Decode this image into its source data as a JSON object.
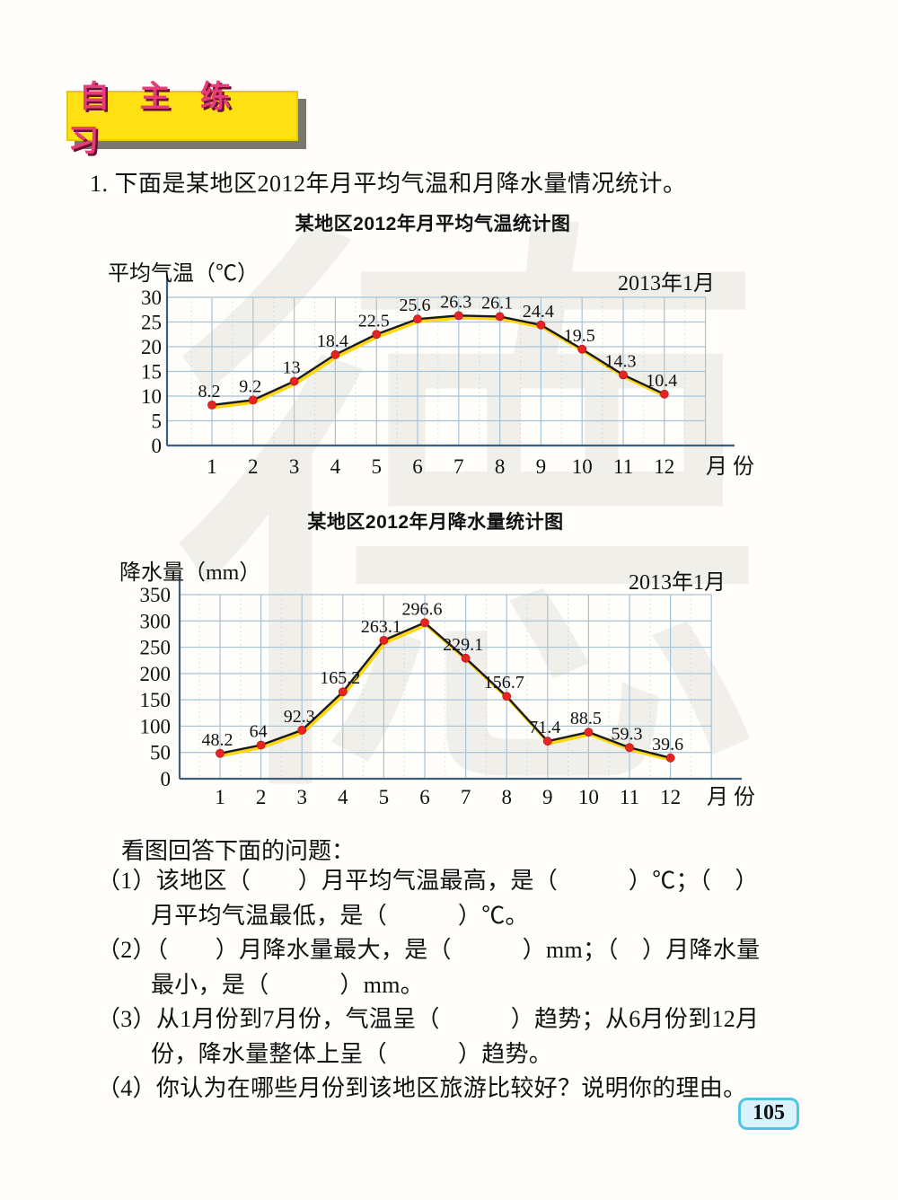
{
  "header": {
    "badge_label": "自 主 练 习"
  },
  "intro_text": "1. 下面是某地区2012年月平均气温和月降水量情况统计。",
  "watermark": "德",
  "chart_data": [
    {
      "type": "line",
      "title": "某地区2012年月平均气温统计图",
      "ylabel": "平均气温（℃）",
      "corner_label": "2013年1月",
      "xlabel": "月份",
      "x": [
        1,
        2,
        3,
        4,
        5,
        6,
        7,
        8,
        9,
        10,
        11,
        12
      ],
      "values": [
        8.2,
        9.2,
        13,
        18.4,
        22.5,
        25.6,
        26.3,
        26.1,
        24.4,
        19.5,
        14.3,
        10.4
      ],
      "value_labels": [
        "8.2",
        "9.2",
        "13",
        "18.4",
        "22.5",
        "25.6",
        "26.3",
        "26.1",
        "24.4",
        "19.5",
        "14.3",
        "10.4"
      ],
      "yticks": [
        0,
        5,
        10,
        15,
        20,
        25,
        30
      ],
      "ylim": [
        0,
        30
      ],
      "grid": true,
      "legend": "none"
    },
    {
      "type": "line",
      "title": "某地区2012年月降水量统计图",
      "ylabel": "降水量（mm）",
      "corner_label": "2013年1月",
      "xlabel": "月份",
      "x": [
        1,
        2,
        3,
        4,
        5,
        6,
        7,
        8,
        9,
        10,
        11,
        12
      ],
      "values": [
        48.2,
        64,
        92.3,
        165.2,
        263.1,
        296.6,
        229.1,
        156.7,
        71.4,
        88.5,
        59.3,
        39.6
      ],
      "value_labels": [
        "48.2",
        "64",
        "92.3",
        "165.2",
        "263.1",
        "296.6",
        "229.1",
        "156.7",
        "71.4",
        "88.5",
        "59.3",
        "39.6"
      ],
      "yticks": [
        0,
        50,
        100,
        150,
        200,
        250,
        300,
        350
      ],
      "ylim": [
        0,
        350
      ],
      "grid": true,
      "legend": "none"
    }
  ],
  "questions": {
    "lead": "看图回答下面的问题：",
    "lines": [
      {
        "text": "（1）该地区（　　）月平均气温最高，是（　　　）℃；（　）",
        "cont": false
      },
      {
        "text": "月平均气温最低，是（　　　）℃。",
        "cont": true
      },
      {
        "text": "（2）（　　）月降水量最大，是（　　　）mm；（　）月降水量",
        "cont": false
      },
      {
        "text": "最小，是（　　　）mm。",
        "cont": true
      },
      {
        "text": "（3）从1月份到7月份，气温呈（　　　）趋势；从6月份到12月",
        "cont": false
      },
      {
        "text": "份，降水量整体上呈（　　　）趋势。",
        "cont": true
      },
      {
        "text": "（4）你认为在哪些月份到该地区旅游比较好？说明你的理由。",
        "cont": false
      }
    ]
  },
  "page_number": "105",
  "colors": {
    "grid_line": "#a7c3d6",
    "axis_line": "#3d5f7d",
    "series_line": "#1a1a1a",
    "series_glow": "#ffd60a",
    "point_fill": "#e62421",
    "badge_bg": "#ffe012",
    "badge_text": "#e73c7a",
    "page_badge_bg": "#d9f2fb",
    "page_badge_border": "#4ec3e6"
  }
}
